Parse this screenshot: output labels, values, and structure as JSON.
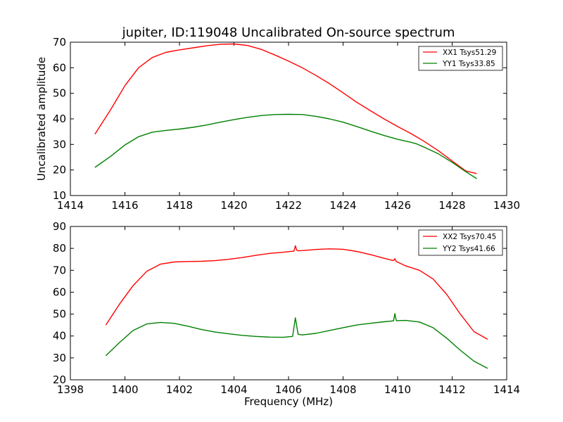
{
  "chart_data": [
    {
      "type": "line",
      "title": "jupiter, ID:119048 Uncalibrated On-source spectrum",
      "xlabel": "",
      "ylabel": "Uncalibrated amplitude",
      "xlim": [
        1414,
        1430
      ],
      "ylim": [
        10,
        70
      ],
      "xticks": [
        "1414",
        "1416",
        "1418",
        "1420",
        "1422",
        "1424",
        "1426",
        "1428",
        "1430"
      ],
      "yticks": [
        "10",
        "20",
        "30",
        "40",
        "50",
        "60",
        "70"
      ],
      "legend_position": "top-right",
      "series": [
        {
          "name": "XX1 Tsys51.29",
          "color": "#ff0000",
          "x": [
            1414.9,
            1415.5,
            1416.0,
            1416.5,
            1417.0,
            1417.5,
            1418.0,
            1418.5,
            1419.0,
            1419.5,
            1420.0,
            1420.5,
            1421.0,
            1421.5,
            1422.0,
            1422.5,
            1423.0,
            1423.5,
            1424.0,
            1424.5,
            1425.0,
            1425.5,
            1426.0,
            1426.5,
            1427.0,
            1427.5,
            1428.0,
            1428.5,
            1428.9
          ],
          "y": [
            34,
            44,
            53,
            60,
            64,
            66,
            67,
            67.8,
            68.6,
            69.2,
            69.3,
            68.7,
            67.2,
            65,
            62.6,
            60,
            57,
            53.8,
            50.2,
            46.5,
            43.2,
            40,
            37,
            34.2,
            31,
            27.5,
            23.5,
            19.6,
            18.6
          ]
        },
        {
          "name": "YY1 Tsys33.85",
          "color": "#008000",
          "x": [
            1414.9,
            1415.5,
            1416.0,
            1416.5,
            1417.0,
            1417.5,
            1418.0,
            1418.5,
            1419.0,
            1419.5,
            1420.0,
            1420.5,
            1421.0,
            1421.5,
            1422.0,
            1422.5,
            1423.0,
            1423.5,
            1424.0,
            1424.5,
            1425.0,
            1425.5,
            1426.0,
            1426.5,
            1426.7,
            1427.0,
            1427.5,
            1428.0,
            1428.5,
            1428.9
          ],
          "y": [
            21,
            25.5,
            29.8,
            33,
            34.8,
            35.5,
            36,
            36.7,
            37.6,
            38.7,
            39.7,
            40.6,
            41.3,
            41.7,
            41.8,
            41.7,
            41,
            40,
            38.7,
            37,
            35.2,
            33.5,
            32,
            30.8,
            30.2,
            28.8,
            26.3,
            23,
            19.3,
            16.6
          ]
        }
      ]
    },
    {
      "type": "line",
      "title": "",
      "xlabel": "Frequency (MHz)",
      "ylabel": "",
      "xlim": [
        1398,
        1414
      ],
      "ylim": [
        20,
        90
      ],
      "xticks": [
        "1398",
        "1400",
        "1402",
        "1404",
        "1406",
        "1408",
        "1410",
        "1412",
        "1414"
      ],
      "yticks": [
        "20",
        "30",
        "40",
        "50",
        "60",
        "70",
        "80",
        "90"
      ],
      "legend_position": "top-right",
      "series": [
        {
          "name": "XX2 Tsys70.45",
          "color": "#ff0000",
          "x": [
            1399.3,
            1399.8,
            1400.3,
            1400.8,
            1401.3,
            1401.8,
            1402.3,
            1402.8,
            1403.3,
            1403.8,
            1404.3,
            1404.8,
            1405.3,
            1405.8,
            1406.2,
            1406.25,
            1406.3,
            1406.35,
            1406.5,
            1407.0,
            1407.5,
            1408.0,
            1408.5,
            1409.0,
            1409.5,
            1409.85,
            1409.9,
            1409.95,
            1410.3,
            1410.8,
            1411.3,
            1411.8,
            1412.3,
            1412.8,
            1413.3
          ],
          "y": [
            45,
            54.5,
            63,
            69.5,
            72.8,
            73.8,
            74,
            74.1,
            74.4,
            75,
            75.8,
            76.8,
            77.7,
            78.2,
            78.8,
            81.2,
            79.2,
            78.9,
            79,
            79.5,
            79.8,
            79.6,
            78.6,
            77.2,
            75.5,
            74.4,
            75.3,
            74,
            72,
            70,
            66,
            59,
            50,
            42,
            38.5
          ]
        },
        {
          "name": "YY2 Tsys41.66",
          "color": "#008000",
          "x": [
            1399.3,
            1399.8,
            1400.3,
            1400.8,
            1401.3,
            1401.8,
            1402.3,
            1402.8,
            1403.3,
            1403.8,
            1404.3,
            1404.8,
            1405.3,
            1405.8,
            1406.15,
            1406.25,
            1406.35,
            1406.5,
            1407.0,
            1407.5,
            1408.0,
            1408.5,
            1409.0,
            1409.5,
            1409.85,
            1409.9,
            1409.95,
            1410.3,
            1410.8,
            1411.3,
            1411.8,
            1412.3,
            1412.8,
            1413.3
          ],
          "y": [
            31,
            37,
            42.5,
            45.5,
            46.2,
            45.8,
            44.5,
            43,
            41.8,
            41,
            40.3,
            39.8,
            39.5,
            39.4,
            39.8,
            48.3,
            40.8,
            40.5,
            41.2,
            42.5,
            43.8,
            45,
            45.8,
            46.5,
            46.9,
            50.2,
            47,
            47.1,
            46.4,
            43.8,
            39,
            33.5,
            28.5,
            25.2
          ]
        }
      ]
    }
  ]
}
